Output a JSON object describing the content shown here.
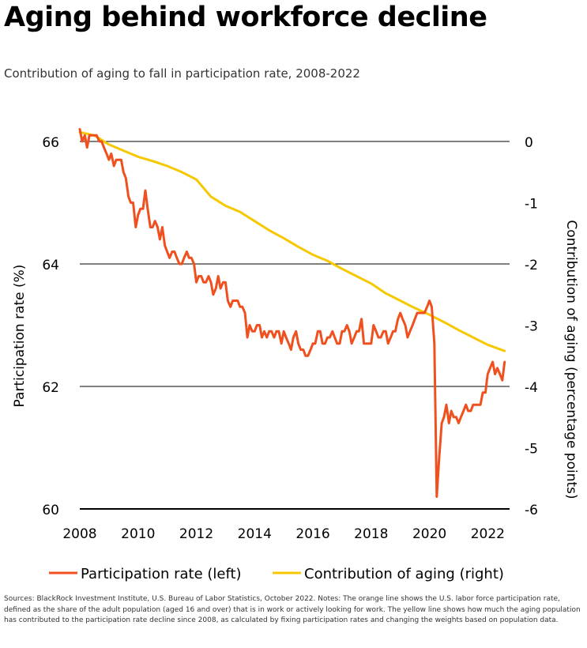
{
  "chart_data": {
    "type": "line",
    "title": "Aging behind workforce decline",
    "subtitle": "Contribution of aging to fall in participation rate, 2008-2022",
    "x_ticks": [
      2008,
      2010,
      2012,
      2014,
      2016,
      2018,
      2020,
      2022
    ],
    "xlim": [
      2008,
      2022.75
    ],
    "y_left": {
      "label": "Participation rate (%)",
      "ticks": [
        60,
        62,
        64,
        66
      ],
      "ylim": [
        60,
        66
      ]
    },
    "y_right": {
      "label": "Contribution of aging (percentage points)",
      "ticks": [
        0,
        -1,
        -2,
        -3,
        -4,
        -5,
        -6
      ],
      "ylim": [
        -6,
        0
      ]
    },
    "legend_position": "bottom",
    "grid": "horizontal",
    "series": [
      {
        "name": "Participation rate (left)",
        "axis": "left",
        "color": "#f0501e",
        "points": [
          [
            2008.0,
            66.2
          ],
          [
            2008.08,
            66.0
          ],
          [
            2008.17,
            66.1
          ],
          [
            2008.25,
            65.9
          ],
          [
            2008.33,
            66.1
          ],
          [
            2008.42,
            66.1
          ],
          [
            2008.5,
            66.1
          ],
          [
            2008.58,
            66.1
          ],
          [
            2008.67,
            66.0
          ],
          [
            2008.75,
            66.0
          ],
          [
            2008.83,
            65.9
          ],
          [
            2008.92,
            65.8
          ],
          [
            2009.0,
            65.7
          ],
          [
            2009.08,
            65.8
          ],
          [
            2009.17,
            65.6
          ],
          [
            2009.25,
            65.7
          ],
          [
            2009.33,
            65.7
          ],
          [
            2009.42,
            65.7
          ],
          [
            2009.5,
            65.5
          ],
          [
            2009.58,
            65.4
          ],
          [
            2009.67,
            65.1
          ],
          [
            2009.75,
            65.0
          ],
          [
            2009.83,
            65.0
          ],
          [
            2009.92,
            64.6
          ],
          [
            2010.0,
            64.8
          ],
          [
            2010.08,
            64.9
          ],
          [
            2010.17,
            64.9
          ],
          [
            2010.25,
            65.2
          ],
          [
            2010.33,
            64.9
          ],
          [
            2010.42,
            64.6
          ],
          [
            2010.5,
            64.6
          ],
          [
            2010.58,
            64.7
          ],
          [
            2010.67,
            64.6
          ],
          [
            2010.75,
            64.4
          ],
          [
            2010.83,
            64.6
          ],
          [
            2010.92,
            64.3
          ],
          [
            2011.0,
            64.2
          ],
          [
            2011.08,
            64.1
          ],
          [
            2011.17,
            64.2
          ],
          [
            2011.25,
            64.2
          ],
          [
            2011.33,
            64.1
          ],
          [
            2011.42,
            64.0
          ],
          [
            2011.5,
            64.0
          ],
          [
            2011.58,
            64.1
          ],
          [
            2011.67,
            64.2
          ],
          [
            2011.75,
            64.1
          ],
          [
            2011.83,
            64.1
          ],
          [
            2011.92,
            64.0
          ],
          [
            2012.0,
            63.7
          ],
          [
            2012.08,
            63.8
          ],
          [
            2012.17,
            63.8
          ],
          [
            2012.25,
            63.7
          ],
          [
            2012.33,
            63.7
          ],
          [
            2012.42,
            63.8
          ],
          [
            2012.5,
            63.7
          ],
          [
            2012.58,
            63.5
          ],
          [
            2012.67,
            63.6
          ],
          [
            2012.75,
            63.8
          ],
          [
            2012.83,
            63.6
          ],
          [
            2012.92,
            63.7
          ],
          [
            2013.0,
            63.7
          ],
          [
            2013.08,
            63.4
          ],
          [
            2013.17,
            63.3
          ],
          [
            2013.25,
            63.4
          ],
          [
            2013.33,
            63.4
          ],
          [
            2013.42,
            63.4
          ],
          [
            2013.5,
            63.3
          ],
          [
            2013.58,
            63.3
          ],
          [
            2013.67,
            63.2
          ],
          [
            2013.75,
            62.8
          ],
          [
            2013.83,
            63.0
          ],
          [
            2013.92,
            62.9
          ],
          [
            2014.0,
            62.9
          ],
          [
            2014.08,
            63.0
          ],
          [
            2014.17,
            63.0
          ],
          [
            2014.25,
            62.8
          ],
          [
            2014.33,
            62.9
          ],
          [
            2014.42,
            62.8
          ],
          [
            2014.5,
            62.9
          ],
          [
            2014.58,
            62.9
          ],
          [
            2014.67,
            62.8
          ],
          [
            2014.75,
            62.9
          ],
          [
            2014.83,
            62.9
          ],
          [
            2014.92,
            62.7
          ],
          [
            2015.0,
            62.9
          ],
          [
            2015.08,
            62.8
          ],
          [
            2015.17,
            62.7
          ],
          [
            2015.25,
            62.6
          ],
          [
            2015.33,
            62.8
          ],
          [
            2015.42,
            62.9
          ],
          [
            2015.5,
            62.7
          ],
          [
            2015.58,
            62.6
          ],
          [
            2015.67,
            62.6
          ],
          [
            2015.75,
            62.5
          ],
          [
            2015.83,
            62.5
          ],
          [
            2015.92,
            62.6
          ],
          [
            2016.0,
            62.7
          ],
          [
            2016.08,
            62.7
          ],
          [
            2016.17,
            62.9
          ],
          [
            2016.25,
            62.9
          ],
          [
            2016.33,
            62.7
          ],
          [
            2016.42,
            62.7
          ],
          [
            2016.5,
            62.8
          ],
          [
            2016.58,
            62.8
          ],
          [
            2016.67,
            62.9
          ],
          [
            2016.75,
            62.8
          ],
          [
            2016.83,
            62.7
          ],
          [
            2016.92,
            62.7
          ],
          [
            2017.0,
            62.9
          ],
          [
            2017.08,
            62.9
          ],
          [
            2017.17,
            63.0
          ],
          [
            2017.25,
            62.9
          ],
          [
            2017.33,
            62.7
          ],
          [
            2017.42,
            62.8
          ],
          [
            2017.5,
            62.9
          ],
          [
            2017.58,
            62.9
          ],
          [
            2017.67,
            63.1
          ],
          [
            2017.75,
            62.7
          ],
          [
            2017.83,
            62.7
          ],
          [
            2017.92,
            62.7
          ],
          [
            2018.0,
            62.7
          ],
          [
            2018.08,
            63.0
          ],
          [
            2018.17,
            62.9
          ],
          [
            2018.25,
            62.8
          ],
          [
            2018.33,
            62.8
          ],
          [
            2018.42,
            62.9
          ],
          [
            2018.5,
            62.9
          ],
          [
            2018.58,
            62.7
          ],
          [
            2018.67,
            62.8
          ],
          [
            2018.75,
            62.9
          ],
          [
            2018.83,
            62.9
          ],
          [
            2018.92,
            63.1
          ],
          [
            2019.0,
            63.2
          ],
          [
            2019.08,
            63.1
          ],
          [
            2019.17,
            63.0
          ],
          [
            2019.25,
            62.8
          ],
          [
            2019.33,
            62.9
          ],
          [
            2019.42,
            63.0
          ],
          [
            2019.5,
            63.1
          ],
          [
            2019.58,
            63.2
          ],
          [
            2019.67,
            63.2
          ],
          [
            2019.75,
            63.2
          ],
          [
            2019.83,
            63.2
          ],
          [
            2019.92,
            63.3
          ],
          [
            2020.0,
            63.4
          ],
          [
            2020.08,
            63.3
          ],
          [
            2020.17,
            62.7
          ],
          [
            2020.25,
            60.2
          ],
          [
            2020.33,
            60.8
          ],
          [
            2020.42,
            61.4
          ],
          [
            2020.5,
            61.5
          ],
          [
            2020.58,
            61.7
          ],
          [
            2020.67,
            61.4
          ],
          [
            2020.75,
            61.6
          ],
          [
            2020.83,
            61.5
          ],
          [
            2020.92,
            61.5
          ],
          [
            2021.0,
            61.4
          ],
          [
            2021.08,
            61.5
          ],
          [
            2021.17,
            61.6
          ],
          [
            2021.25,
            61.7
          ],
          [
            2021.33,
            61.6
          ],
          [
            2021.42,
            61.6
          ],
          [
            2021.5,
            61.7
          ],
          [
            2021.58,
            61.7
          ],
          [
            2021.67,
            61.7
          ],
          [
            2021.75,
            61.7
          ],
          [
            2021.83,
            61.9
          ],
          [
            2021.92,
            61.9
          ],
          [
            2022.0,
            62.2
          ],
          [
            2022.08,
            62.3
          ],
          [
            2022.17,
            62.4
          ],
          [
            2022.25,
            62.2
          ],
          [
            2022.33,
            62.3
          ],
          [
            2022.42,
            62.2
          ],
          [
            2022.5,
            62.1
          ],
          [
            2022.58,
            62.4
          ]
        ]
      },
      {
        "name": "Contribution of aging (right)",
        "axis": "right",
        "color": "#f5c800",
        "points": [
          [
            2008.0,
            0.15
          ],
          [
            2008.5,
            0.1
          ],
          [
            2009.0,
            -0.05
          ],
          [
            2009.5,
            -0.15
          ],
          [
            2010.0,
            -0.25
          ],
          [
            2010.5,
            -0.32
          ],
          [
            2011.0,
            -0.4
          ],
          [
            2011.5,
            -0.5
          ],
          [
            2012.0,
            -0.62
          ],
          [
            2012.5,
            -0.9
          ],
          [
            2013.0,
            -1.05
          ],
          [
            2013.5,
            -1.15
          ],
          [
            2014.0,
            -1.3
          ],
          [
            2014.5,
            -1.45
          ],
          [
            2015.0,
            -1.58
          ],
          [
            2015.5,
            -1.72
          ],
          [
            2016.0,
            -1.85
          ],
          [
            2016.5,
            -1.95
          ],
          [
            2017.0,
            -2.08
          ],
          [
            2017.5,
            -2.2
          ],
          [
            2018.0,
            -2.32
          ],
          [
            2018.5,
            -2.48
          ],
          [
            2019.0,
            -2.6
          ],
          [
            2019.5,
            -2.72
          ],
          [
            2020.0,
            -2.83
          ],
          [
            2020.5,
            -2.95
          ],
          [
            2021.0,
            -3.08
          ],
          [
            2021.5,
            -3.2
          ],
          [
            2022.0,
            -3.32
          ],
          [
            2022.58,
            -3.42
          ]
        ]
      }
    ]
  },
  "sources": "Sources: BlackRock Investment Institute, U.S. Bureau of Labor Statistics, October 2022. Notes: The orange line shows the U.S. labor force participation rate, defined as the share of the adult population (aged 16 and over) that is in work or actively looking for work. The yellow line shows how much the aging population has contributed to the participation rate decline since 2008, as calculated by fixing participation rates and changing the weights based on population data."
}
